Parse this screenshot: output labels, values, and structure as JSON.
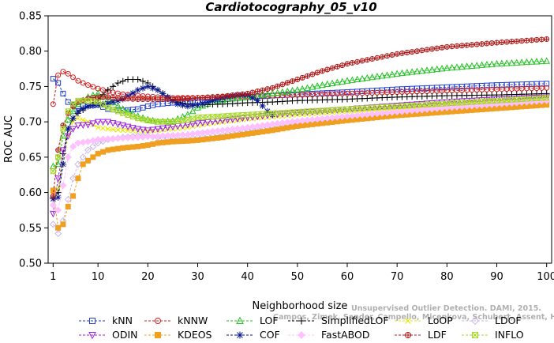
{
  "chart_data": {
    "type": "line",
    "title": "Cardiotocography_05_v10",
    "xlabel": "Neighborhood size",
    "ylabel": "ROC AUC",
    "xlim": [
      0,
      101
    ],
    "ylim": [
      0.5,
      0.85
    ],
    "xticks": [
      1,
      10,
      20,
      30,
      40,
      50,
      60,
      70,
      80,
      90,
      100
    ],
    "yticks": [
      "0.50",
      "0.55",
      "0.60",
      "0.65",
      "0.70",
      "0.75",
      "0.80",
      "0.85"
    ],
    "watermark": [
      "Unsupervised Outlier Detection. DAMI, 2015.",
      "Campos, Zimek, Sander, Campello, Micenkova, Schubert, Assent, Houle"
    ],
    "series": [
      {
        "name": "kNN",
        "color": "#1f3fd0",
        "marker": "square",
        "x": [
          1,
          2,
          3,
          4,
          5,
          6,
          8,
          10,
          12,
          15,
          18,
          20,
          22,
          25,
          28,
          30,
          35,
          40,
          45,
          50,
          60,
          70,
          80,
          90,
          100
        ],
        "y": [
          0.761,
          0.755,
          0.74,
          0.728,
          0.724,
          0.722,
          0.723,
          0.724,
          0.718,
          0.716,
          0.718,
          0.722,
          0.725,
          0.727,
          0.729,
          0.73,
          0.732,
          0.735,
          0.737,
          0.739,
          0.742,
          0.746,
          0.749,
          0.752,
          0.754
        ]
      },
      {
        "name": "kNNW",
        "color": "#d42020",
        "marker": "circle",
        "x": [
          1,
          2,
          3,
          4,
          5,
          6,
          8,
          10,
          12,
          15,
          18,
          20,
          22,
          25,
          28,
          30,
          35,
          40,
          45,
          50,
          60,
          70,
          80,
          90,
          100
        ],
        "y": [
          0.725,
          0.766,
          0.771,
          0.768,
          0.763,
          0.758,
          0.752,
          0.747,
          0.743,
          0.739,
          0.737,
          0.736,
          0.735,
          0.734,
          0.734,
          0.734,
          0.735,
          0.736,
          0.737,
          0.738,
          0.74,
          0.742,
          0.744,
          0.746,
          0.748
        ]
      },
      {
        "name": "LOF",
        "color": "#22c022",
        "marker": "triangle",
        "x": [
          1,
          2,
          3,
          4,
          5,
          6,
          8,
          10,
          12,
          15,
          18,
          20,
          22,
          25,
          28,
          30,
          33,
          36,
          40,
          45,
          50,
          55,
          60,
          70,
          80,
          90,
          100
        ],
        "y": [
          0.637,
          0.64,
          0.68,
          0.703,
          0.715,
          0.725,
          0.735,
          0.74,
          0.732,
          0.718,
          0.708,
          0.703,
          0.7,
          0.701,
          0.71,
          0.72,
          0.728,
          0.732,
          0.735,
          0.74,
          0.745,
          0.752,
          0.758,
          0.768,
          0.776,
          0.782,
          0.786
        ]
      },
      {
        "name": "SimplifiedLOF",
        "color": "#000000",
        "marker": "plus",
        "x": [
          1,
          2,
          3,
          4,
          5,
          6,
          8,
          10,
          12,
          14,
          16,
          18,
          20,
          22,
          24,
          26,
          28,
          30,
          35,
          40,
          45,
          50,
          60,
          70,
          80,
          90,
          100
        ],
        "y": [
          0.593,
          0.6,
          0.655,
          0.69,
          0.705,
          0.712,
          0.722,
          0.732,
          0.745,
          0.755,
          0.76,
          0.76,
          0.755,
          0.745,
          0.735,
          0.728,
          0.725,
          0.724,
          0.725,
          0.727,
          0.728,
          0.73,
          0.732,
          0.735,
          0.737,
          0.738,
          0.74
        ]
      },
      {
        "name": "LoOP",
        "color": "#e8e800",
        "marker": "x",
        "x": [
          1,
          2,
          3,
          4,
          5,
          6,
          8,
          10,
          12,
          15,
          18,
          20,
          22,
          25,
          28,
          30,
          35,
          40,
          45,
          50,
          60,
          70,
          80,
          90,
          100
        ],
        "y": [
          0.601,
          0.605,
          0.64,
          0.68,
          0.7,
          0.705,
          0.7,
          0.692,
          0.69,
          0.688,
          0.687,
          0.687,
          0.688,
          0.69,
          0.692,
          0.695,
          0.7,
          0.704,
          0.707,
          0.71,
          0.715,
          0.72,
          0.724,
          0.728,
          0.732
        ]
      },
      {
        "name": "LDOF",
        "color": "#c8b8ec",
        "marker": "diamond",
        "x": [
          1,
          2,
          3,
          4,
          5,
          6,
          8,
          10,
          12,
          15,
          18,
          20,
          22,
          25,
          28,
          30,
          35,
          40,
          45,
          50,
          60,
          70,
          80,
          90,
          100
        ],
        "y": [
          0.555,
          0.542,
          0.56,
          0.59,
          0.62,
          0.64,
          0.66,
          0.67,
          0.675,
          0.678,
          0.68,
          0.68,
          0.678,
          0.676,
          0.676,
          0.678,
          0.682,
          0.688,
          0.692,
          0.697,
          0.704,
          0.711,
          0.717,
          0.722,
          0.728
        ]
      },
      {
        "name": "ODIN",
        "color": "#a020e0",
        "marker": "tri-down",
        "x": [
          1,
          2,
          3,
          4,
          5,
          6,
          8,
          10,
          12,
          15,
          18,
          20,
          22,
          25,
          28,
          30,
          35,
          40,
          45,
          50,
          60,
          70,
          80,
          90,
          100
        ],
        "y": [
          0.57,
          0.62,
          0.66,
          0.68,
          0.69,
          0.695,
          0.696,
          0.7,
          0.7,
          0.695,
          0.69,
          0.688,
          0.69,
          0.693,
          0.696,
          0.698,
          0.702,
          0.706,
          0.71,
          0.713,
          0.718,
          0.723,
          0.728,
          0.732,
          0.735
        ]
      },
      {
        "name": "KDEOS",
        "color": "#f0a020",
        "marker": "square-filled",
        "x": [
          1,
          2,
          3,
          4,
          5,
          6,
          7,
          8,
          10,
          12,
          15,
          18,
          20,
          22,
          25,
          28,
          30,
          35,
          40,
          45,
          50,
          60,
          70,
          80,
          90,
          100
        ],
        "y": [
          0.603,
          0.55,
          0.555,
          0.58,
          0.595,
          0.62,
          0.64,
          0.645,
          0.655,
          0.66,
          0.663,
          0.665,
          0.667,
          0.67,
          0.672,
          0.673,
          0.674,
          0.678,
          0.683,
          0.688,
          0.694,
          0.702,
          0.709,
          0.714,
          0.719,
          0.724
        ]
      },
      {
        "name": "COF",
        "color": "#0a1a90",
        "marker": "asterisk",
        "x": [
          1,
          2,
          3,
          4,
          5,
          6,
          8,
          10,
          12,
          15,
          18,
          20,
          22,
          24,
          26,
          28,
          30,
          33,
          36,
          38,
          40,
          42,
          44,
          45
        ],
        "y": [
          0.591,
          0.593,
          0.64,
          0.69,
          0.705,
          0.715,
          0.722,
          0.724,
          0.726,
          0.732,
          0.745,
          0.75,
          0.745,
          0.735,
          0.725,
          0.722,
          0.724,
          0.73,
          0.736,
          0.738,
          0.738,
          0.73,
          0.715,
          0.71
        ]
      },
      {
        "name": "FastABOD",
        "color": "#ffc0ff",
        "marker": "diamond-filled",
        "x": [
          1,
          2,
          3,
          4,
          5,
          6,
          8,
          10,
          12,
          15,
          18,
          20,
          22,
          25,
          28,
          30,
          35,
          40,
          45,
          50,
          60,
          70,
          80,
          90,
          100
        ],
        "y": [
          0.582,
          0.575,
          0.61,
          0.65,
          0.665,
          0.67,
          0.672,
          0.675,
          0.676,
          0.677,
          0.678,
          0.679,
          0.68,
          0.681,
          0.682,
          0.684,
          0.688,
          0.692,
          0.697,
          0.701,
          0.708,
          0.714,
          0.72,
          0.725,
          0.73
        ]
      },
      {
        "name": "LDF",
        "color": "#b01818",
        "marker": "circle-plus",
        "x": [
          1,
          2,
          3,
          4,
          5,
          6,
          8,
          10,
          12,
          15,
          18,
          20,
          22,
          25,
          28,
          30,
          35,
          40,
          45,
          50,
          55,
          60,
          70,
          80,
          90,
          100
        ],
        "y": [
          0.595,
          0.66,
          0.695,
          0.712,
          0.722,
          0.728,
          0.733,
          0.735,
          0.735,
          0.733,
          0.732,
          0.732,
          0.732,
          0.732,
          0.733,
          0.734,
          0.736,
          0.74,
          0.748,
          0.76,
          0.772,
          0.782,
          0.796,
          0.806,
          0.812,
          0.817
        ]
      },
      {
        "name": "INFLO",
        "color": "#a8d828",
        "marker": "box-x",
        "x": [
          1,
          2,
          3,
          4,
          5,
          6,
          8,
          10,
          12,
          15,
          18,
          20,
          22,
          25,
          28,
          30,
          35,
          40,
          45,
          50,
          60,
          70,
          80,
          90,
          100
        ],
        "y": [
          0.63,
          0.65,
          0.69,
          0.715,
          0.725,
          0.73,
          0.73,
          0.728,
          0.72,
          0.712,
          0.705,
          0.702,
          0.7,
          0.7,
          0.703,
          0.706,
          0.708,
          0.71,
          0.712,
          0.714,
          0.718,
          0.722,
          0.726,
          0.73,
          0.734
        ]
      }
    ],
    "legend_position": "bottom",
    "grid": false
  }
}
